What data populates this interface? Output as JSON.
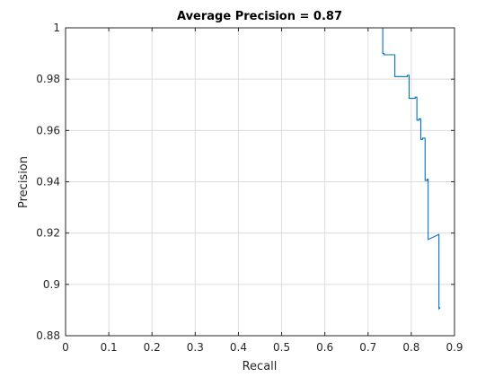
{
  "chart_data": {
    "type": "line",
    "title": "Average Precision = 0.87",
    "xlabel": "Recall",
    "ylabel": "Precision",
    "xlim": [
      0,
      0.9
    ],
    "ylim": [
      0.88,
      1
    ],
    "xticks": [
      0,
      0.1,
      0.2,
      0.3,
      0.4,
      0.5,
      0.6,
      0.7,
      0.8,
      0.9
    ],
    "yticks": [
      0.88,
      0.9,
      0.92,
      0.94,
      0.96,
      0.98,
      1
    ],
    "xtick_labels": [
      "0",
      "0.1",
      "0.2",
      "0.3",
      "0.4",
      "0.5",
      "0.6",
      "0.7",
      "0.8",
      "0.9"
    ],
    "ytick_labels": [
      "0.88",
      "0.9",
      "0.92",
      "0.94",
      "0.96",
      "0.98",
      "1"
    ],
    "grid": true,
    "legend": false,
    "colors": {
      "line": "#0072bd",
      "axes": "#262626",
      "grid": "#dcdcdc",
      "background": "#ffffff"
    },
    "series": [
      {
        "x": [
          0,
          0.734,
          0.734,
          0.737,
          0.737,
          0.762,
          0.762,
          0.791,
          0.791,
          0.795,
          0.795,
          0.809,
          0.809,
          0.813,
          0.813,
          0.818,
          0.818,
          0.822,
          0.822,
          0.826,
          0.826,
          0.832,
          0.832,
          0.837,
          0.837,
          0.839,
          0.839,
          0.864,
          0.864,
          0.867
        ],
        "y": [
          1.0,
          1.0,
          0.99,
          0.99,
          0.9895,
          0.9895,
          0.981,
          0.981,
          0.9815,
          0.9815,
          0.9725,
          0.9725,
          0.973,
          0.973,
          0.964,
          0.964,
          0.9645,
          0.9645,
          0.9565,
          0.9565,
          0.957,
          0.957,
          0.9405,
          0.9405,
          0.941,
          0.941,
          0.9175,
          0.9195,
          0.8905,
          0.891
        ]
      }
    ]
  }
}
